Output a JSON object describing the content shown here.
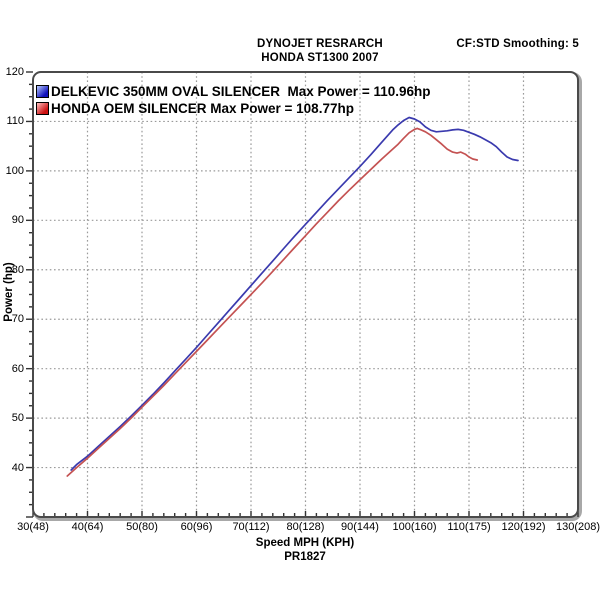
{
  "header": {
    "line1": "DYNOJET RESRARCH",
    "line2": "HONDA ST1300 2007",
    "right": "CF:STD Smoothing: 5"
  },
  "footer": {
    "xlabel": "Speed MPH (KPH)",
    "run_id": "PR1827"
  },
  "y_axis_title": "Power (hp)",
  "legend": [
    {
      "label": "DELKEVIC 350MM OVAL SILENCER  Max Power = 110.96hp",
      "swatch_gradient": [
        "#b8ccff",
        "#1111bb"
      ]
    },
    {
      "label": "HONDA OEM SILENCER Max Power = 108.77hp",
      "swatch_gradient": [
        "#ffc0c0",
        "#cc1111"
      ]
    }
  ],
  "colors": {
    "blue_curve": "#3a3aae",
    "red_curve": "#c45252",
    "grid": "#9a9a9a",
    "border": "#4a4a4a",
    "border_shadow": "#a8a8a8",
    "tick": "#333333",
    "text": "#000000",
    "background": "#ffffff"
  },
  "chart_data": {
    "type": "line",
    "title": "DYNOJET RESRARCH",
    "subtitle": "HONDA ST1300 2007",
    "annotation_right": "CF:STD Smoothing: 5",
    "xlabel": "Speed MPH (KPH)",
    "ylabel": "Power (hp)",
    "run_id": "PR1827",
    "xlim": [
      30,
      130
    ],
    "ylim": [
      30,
      120
    ],
    "x_major_step": 10,
    "x_minor_step": 2,
    "y_major_step": 10,
    "y_minor_step": 2.5,
    "grid": "dotted",
    "legend_position": "top-left-inside",
    "xtick_labels": [
      "30(48)",
      "40(64)",
      "50(80)",
      "60(96)",
      "70(112)",
      "80(128)",
      "90(144)",
      "100(160)",
      "110(175)",
      "120(192)",
      "130(208)"
    ],
    "ytick_values": [
      120,
      110,
      100,
      90,
      80,
      70,
      60,
      50,
      40
    ],
    "series": [
      {
        "name": "DELKEVIC 350MM OVAL SILENCER",
        "max_power_hp": 110.96,
        "color": "#3a3aae",
        "points": [
          [
            37,
            39.5
          ],
          [
            38,
            40.6
          ],
          [
            40,
            42.3
          ],
          [
            42,
            44.3
          ],
          [
            44,
            46.3
          ],
          [
            46,
            48.3
          ],
          [
            48,
            50.4
          ],
          [
            50,
            52.6
          ],
          [
            52,
            54.8
          ],
          [
            54,
            57.1
          ],
          [
            56,
            59.5
          ],
          [
            58,
            61.9
          ],
          [
            60,
            64.3
          ],
          [
            62,
            66.8
          ],
          [
            64,
            69.3
          ],
          [
            66,
            71.8
          ],
          [
            68,
            74.3
          ],
          [
            70,
            76.8
          ],
          [
            72,
            79.3
          ],
          [
            74,
            81.8
          ],
          [
            76,
            84.3
          ],
          [
            78,
            86.8
          ],
          [
            80,
            89.2
          ],
          [
            82,
            91.6
          ],
          [
            84,
            94.0
          ],
          [
            86,
            96.3
          ],
          [
            88,
            98.6
          ],
          [
            90,
            100.9
          ],
          [
            92,
            103.3
          ],
          [
            94,
            105.8
          ],
          [
            96,
            108.3
          ],
          [
            97,
            109.3
          ],
          [
            98,
            110.2
          ],
          [
            99,
            110.8
          ],
          [
            100,
            110.5
          ],
          [
            101,
            109.9
          ],
          [
            102,
            108.9
          ],
          [
            103,
            108.2
          ],
          [
            104,
            107.9
          ],
          [
            105,
            108.0
          ],
          [
            106,
            108.1
          ],
          [
            107,
            108.3
          ],
          [
            108,
            108.4
          ],
          [
            109,
            108.2
          ],
          [
            110,
            107.8
          ],
          [
            111,
            107.4
          ],
          [
            112,
            106.9
          ],
          [
            113,
            106.3
          ],
          [
            114,
            105.7
          ],
          [
            115,
            104.9
          ],
          [
            116,
            103.8
          ],
          [
            117,
            102.8
          ],
          [
            118,
            102.3
          ],
          [
            119,
            102.1
          ]
        ]
      },
      {
        "name": "HONDA OEM SILENCER",
        "max_power_hp": 108.77,
        "color": "#c45252",
        "points": [
          [
            36.3,
            38.3
          ],
          [
            38,
            40.0
          ],
          [
            40,
            41.9
          ],
          [
            42,
            43.9
          ],
          [
            44,
            45.9
          ],
          [
            46,
            47.9
          ],
          [
            48,
            50.0
          ],
          [
            50,
            52.2
          ],
          [
            52,
            54.4
          ],
          [
            54,
            56.6
          ],
          [
            56,
            58.9
          ],
          [
            58,
            61.2
          ],
          [
            60,
            63.5
          ],
          [
            62,
            65.8
          ],
          [
            64,
            68.1
          ],
          [
            66,
            70.4
          ],
          [
            68,
            72.7
          ],
          [
            70,
            75.0
          ],
          [
            72,
            77.3
          ],
          [
            74,
            79.7
          ],
          [
            76,
            82.1
          ],
          [
            78,
            84.5
          ],
          [
            80,
            86.9
          ],
          [
            82,
            89.3
          ],
          [
            84,
            91.6
          ],
          [
            86,
            93.9
          ],
          [
            88,
            96.1
          ],
          [
            90,
            98.2
          ],
          [
            92,
            100.3
          ],
          [
            94,
            102.4
          ],
          [
            96,
            104.4
          ],
          [
            97,
            105.4
          ],
          [
            98,
            106.6
          ],
          [
            99,
            107.7
          ],
          [
            100,
            108.4
          ],
          [
            100.5,
            108.6
          ],
          [
            101,
            108.4
          ],
          [
            102,
            107.9
          ],
          [
            103,
            107.2
          ],
          [
            104,
            106.3
          ],
          [
            105,
            105.4
          ],
          [
            106,
            104.4
          ],
          [
            107,
            103.8
          ],
          [
            107.8,
            103.6
          ],
          [
            108.5,
            103.8
          ],
          [
            109.3,
            103.4
          ],
          [
            110,
            102.8
          ],
          [
            110.7,
            102.4
          ],
          [
            111.5,
            102.2
          ]
        ]
      }
    ]
  }
}
